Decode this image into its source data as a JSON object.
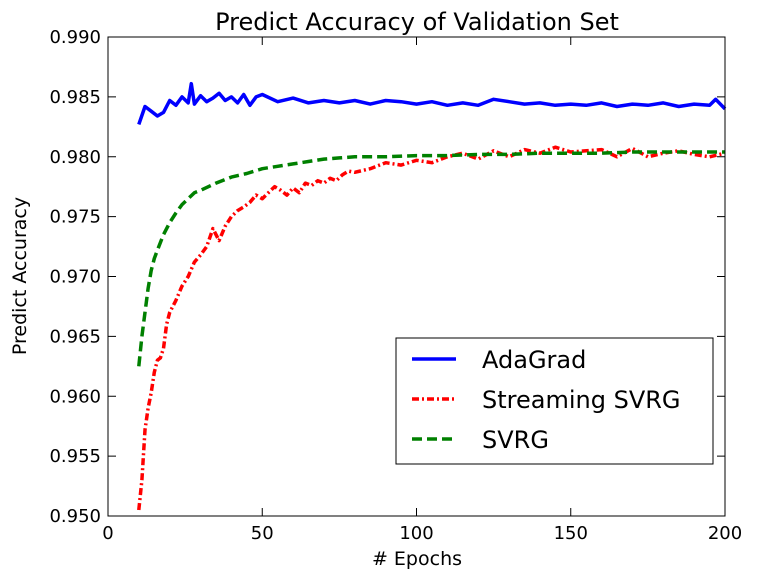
{
  "chart_data": {
    "type": "line",
    "title": "Predict Accuracy of Validation Set",
    "xlabel": "# Epochs",
    "ylabel": "Predict Accuracy",
    "xlim": [
      0,
      200
    ],
    "ylim": [
      0.95,
      0.99
    ],
    "xticks": [
      0,
      50,
      100,
      150,
      200
    ],
    "xtick_labels": [
      "0",
      "50",
      "100",
      "150",
      "200"
    ],
    "yticks": [
      0.95,
      0.955,
      0.96,
      0.965,
      0.97,
      0.975,
      0.98,
      0.985,
      0.99
    ],
    "ytick_labels": [
      "0.950",
      "0.955",
      "0.960",
      "0.965",
      "0.970",
      "0.975",
      "0.980",
      "0.985",
      "0.990"
    ],
    "grid": false,
    "legend": {
      "position": "lower-right"
    },
    "series": [
      {
        "name": "AdaGrad",
        "color": "#0000ff",
        "style": "solid",
        "x": [
          10,
          12,
          14,
          16,
          18,
          20,
          22,
          24,
          26,
          27,
          28,
          30,
          32,
          34,
          36,
          38,
          40,
          42,
          44,
          46,
          48,
          50,
          55,
          60,
          65,
          70,
          75,
          80,
          85,
          90,
          95,
          100,
          105,
          110,
          115,
          120,
          125,
          130,
          135,
          140,
          145,
          150,
          155,
          160,
          165,
          170,
          175,
          180,
          185,
          190,
          195,
          197,
          200
        ],
        "y": [
          0.9827,
          0.9842,
          0.9838,
          0.9834,
          0.9837,
          0.9847,
          0.9843,
          0.985,
          0.9845,
          0.9861,
          0.9844,
          0.9851,
          0.9846,
          0.9849,
          0.9853,
          0.9847,
          0.985,
          0.9845,
          0.9852,
          0.9843,
          0.985,
          0.9852,
          0.9846,
          0.9849,
          0.9845,
          0.9847,
          0.9845,
          0.9847,
          0.9844,
          0.9847,
          0.9846,
          0.9844,
          0.9846,
          0.9843,
          0.9845,
          0.9843,
          0.9848,
          0.9846,
          0.9844,
          0.9845,
          0.9843,
          0.9844,
          0.9843,
          0.9845,
          0.9842,
          0.9844,
          0.9843,
          0.9845,
          0.9842,
          0.9844,
          0.9843,
          0.9848,
          0.984
        ]
      },
      {
        "name": "Streaming SVRG",
        "color": "#ff0000",
        "style": "dashdot",
        "x": [
          10,
          11,
          12,
          13,
          14,
          15,
          16,
          17,
          18,
          19,
          20,
          22,
          24,
          26,
          28,
          30,
          32,
          34,
          36,
          38,
          40,
          42,
          44,
          46,
          48,
          50,
          52,
          54,
          56,
          58,
          60,
          62,
          64,
          66,
          68,
          70,
          72,
          74,
          76,
          78,
          80,
          85,
          90,
          95,
          100,
          105,
          110,
          115,
          120,
          125,
          130,
          135,
          140,
          145,
          150,
          155,
          160,
          165,
          170,
          175,
          180,
          185,
          190,
          195,
          200
        ],
        "y": [
          0.9505,
          0.953,
          0.9572,
          0.959,
          0.9603,
          0.962,
          0.963,
          0.9632,
          0.964,
          0.966,
          0.967,
          0.968,
          0.9692,
          0.97,
          0.9712,
          0.9718,
          0.9725,
          0.974,
          0.973,
          0.9742,
          0.975,
          0.9755,
          0.9758,
          0.9762,
          0.9768,
          0.9765,
          0.977,
          0.9775,
          0.9772,
          0.9768,
          0.9774,
          0.977,
          0.9778,
          0.9776,
          0.978,
          0.9778,
          0.9782,
          0.978,
          0.9785,
          0.9788,
          0.9787,
          0.979,
          0.9795,
          0.9793,
          0.9797,
          0.9795,
          0.98,
          0.9803,
          0.9798,
          0.9805,
          0.98,
          0.9806,
          0.9803,
          0.9808,
          0.9804,
          0.9805,
          0.9806,
          0.98,
          0.9807,
          0.98,
          0.9803,
          0.9805,
          0.9802,
          0.98,
          0.9803
        ]
      },
      {
        "name": "SVRG",
        "color": "#008000",
        "style": "dashed",
        "x": [
          10,
          11,
          12,
          13,
          14,
          15,
          16,
          18,
          20,
          22,
          24,
          26,
          28,
          30,
          35,
          40,
          45,
          50,
          55,
          60,
          65,
          70,
          75,
          80,
          90,
          100,
          110,
          120,
          130,
          140,
          150,
          160,
          170,
          180,
          190,
          200
        ],
        "y": [
          0.9625,
          0.965,
          0.967,
          0.969,
          0.9705,
          0.9715,
          0.9722,
          0.9735,
          0.9745,
          0.9753,
          0.976,
          0.9765,
          0.977,
          0.9772,
          0.9778,
          0.9783,
          0.9786,
          0.979,
          0.9792,
          0.9794,
          0.9796,
          0.9798,
          0.9799,
          0.98,
          0.98,
          0.9801,
          0.9801,
          0.9802,
          0.9802,
          0.9803,
          0.9803,
          0.9803,
          0.9804,
          0.9804,
          0.9804,
          0.9804
        ]
      }
    ]
  }
}
